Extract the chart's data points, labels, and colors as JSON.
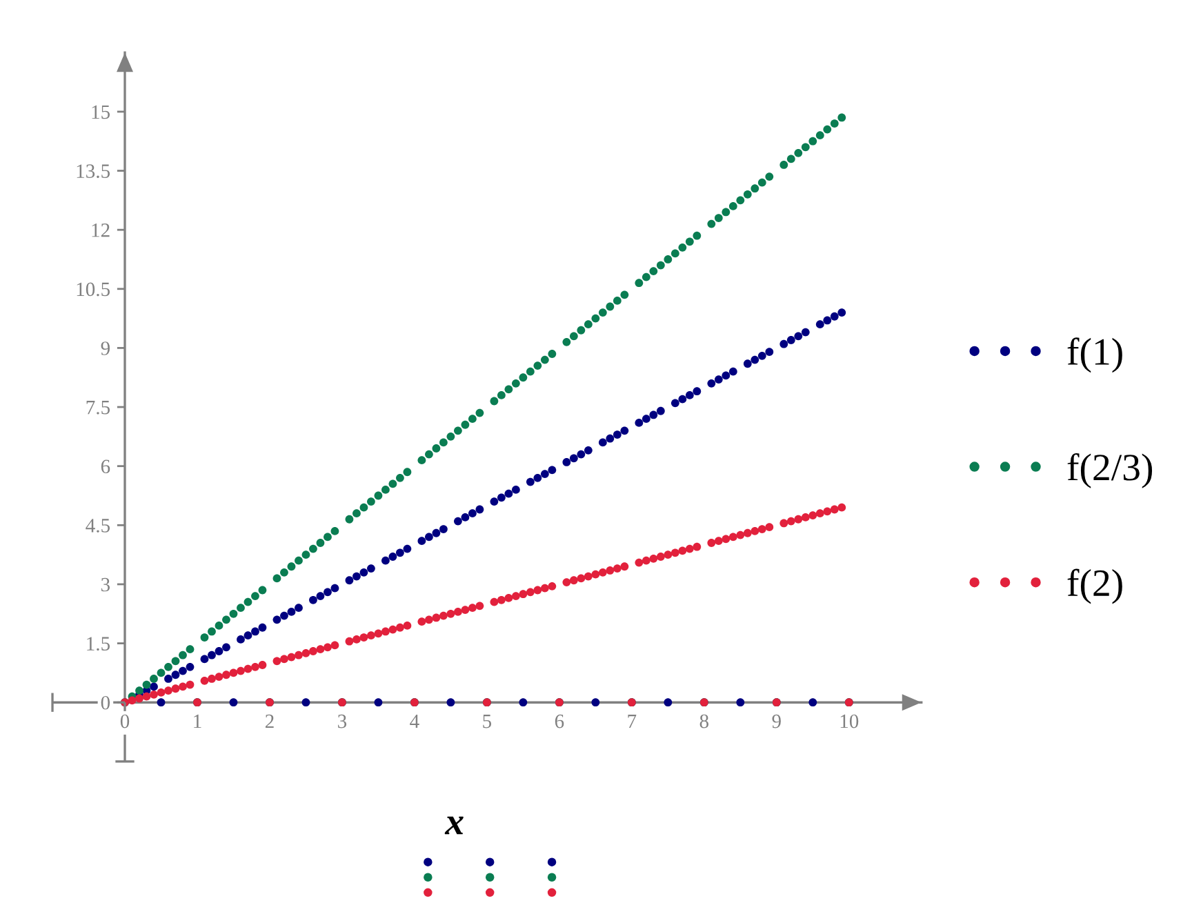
{
  "chart_data": {
    "type": "scatter",
    "xlabel": "x",
    "marker": "circle",
    "legend": "right",
    "xlim": [
      -1,
      11
    ],
    "ylim": [
      -1.5,
      16.5
    ],
    "xticks": [
      0,
      1,
      2,
      3,
      4,
      5,
      6,
      7,
      8,
      9,
      10
    ],
    "yticks": [
      0,
      1.5,
      3,
      4.5,
      6,
      7.5,
      9,
      10.5,
      12,
      13.5,
      15
    ],
    "x": [
      0,
      0.1,
      0.2,
      0.3,
      0.4,
      0.5,
      0.6,
      0.7,
      0.8,
      0.9,
      1,
      1.1,
      1.2,
      1.3,
      1.4,
      1.5,
      1.6,
      1.7,
      1.8,
      1.9,
      2,
      2.1,
      2.2,
      2.3,
      2.4,
      2.5,
      2.6,
      2.7,
      2.8,
      2.9,
      3,
      3.1,
      3.2,
      3.3,
      3.4,
      3.5,
      3.6,
      3.7,
      3.8,
      3.9,
      4,
      4.1,
      4.2,
      4.3,
      4.4,
      4.5,
      4.6,
      4.7,
      4.8,
      4.9,
      5,
      5.1,
      5.2,
      5.3,
      5.4,
      5.5,
      5.6,
      5.7,
      5.8,
      5.9,
      6,
      6.1,
      6.2,
      6.3,
      6.4,
      6.5,
      6.6,
      6.7,
      6.8,
      6.9,
      7,
      7.1,
      7.2,
      7.3,
      7.4,
      7.5,
      7.6,
      7.7,
      7.8,
      7.9,
      8,
      8.1,
      8.2,
      8.3,
      8.4,
      8.5,
      8.6,
      8.7,
      8.8,
      8.9,
      9,
      9.1,
      9.2,
      9.3,
      9.4,
      9.5,
      9.6,
      9.7,
      9.8,
      9.9,
      10
    ],
    "series": [
      {
        "name": "f(1)",
        "color": "#000080",
        "values": [
          0,
          null,
          0.2,
          0.3,
          0.4,
          0,
          0.6,
          0.7,
          0.8,
          0.9,
          0,
          1.1,
          1.2,
          1.3,
          1.4,
          0,
          1.6,
          1.7,
          1.8,
          1.9,
          0,
          2.1,
          2.2,
          2.3,
          2.4,
          0,
          2.6,
          2.7,
          2.8,
          2.9,
          0,
          3.1,
          3.2,
          3.3,
          3.4,
          0,
          3.6,
          3.7,
          3.8,
          3.9,
          0,
          4.1,
          4.2,
          4.3,
          4.4,
          0,
          4.6,
          4.7,
          4.8,
          4.9,
          0,
          5.1,
          5.2,
          5.3,
          5.4,
          0,
          5.6,
          5.7,
          5.8,
          5.9,
          0,
          6.1,
          6.2,
          6.3,
          6.4,
          0,
          6.6,
          6.7,
          6.8,
          6.9,
          0,
          7.1,
          7.2,
          7.3,
          7.4,
          0,
          7.6,
          7.7,
          7.8,
          7.9,
          0,
          8.1,
          8.2,
          8.3,
          8.4,
          0,
          8.6,
          8.7,
          8.8,
          8.9,
          0,
          9.1,
          9.2,
          9.3,
          9.4,
          0,
          9.6,
          9.7,
          9.8,
          9.9,
          0
        ]
      },
      {
        "name": "f(2/3)",
        "color": "#0a7d52",
        "values": [
          0,
          0.15,
          0.3,
          0.45,
          0.6,
          0.75,
          0.9,
          1.05,
          1.2,
          1.35,
          0,
          1.65,
          1.8,
          1.95,
          2.1,
          2.25,
          2.4,
          2.55,
          2.7,
          2.85,
          0,
          3.15,
          3.3,
          3.45,
          3.6,
          3.75,
          3.9,
          4.05,
          4.2,
          4.35,
          0,
          4.65,
          4.8,
          4.95,
          5.1,
          5.25,
          5.4,
          5.55,
          5.7,
          5.85,
          0,
          6.15,
          6.3,
          6.45,
          6.6,
          6.75,
          6.9,
          7.05,
          7.2,
          7.35,
          0,
          7.65,
          7.8,
          7.95,
          8.1,
          8.25,
          8.4,
          8.55,
          8.7,
          8.85,
          0,
          9.15,
          9.3,
          9.45,
          9.6,
          9.75,
          9.9,
          10.05,
          10.2,
          10.35,
          0,
          10.65,
          10.8,
          10.95,
          11.1,
          11.25,
          11.4,
          11.55,
          11.7,
          11.85,
          0,
          12.15,
          12.3,
          12.45,
          12.6,
          12.75,
          12.9,
          13.05,
          13.2,
          13.35,
          0,
          13.65,
          13.8,
          13.95,
          14.1,
          14.25,
          14.4,
          14.55,
          14.7,
          14.85,
          0
        ]
      },
      {
        "name": "f(2)",
        "color": "#e2213c",
        "values": [
          0,
          0.05,
          0.1,
          0.15,
          0.2,
          0.25,
          0.3,
          0.35,
          0.4,
          0.45,
          0,
          0.55,
          0.6,
          0.65,
          0.7,
          0.75,
          0.8,
          0.85,
          0.9,
          0.95,
          0,
          1.05,
          1.1,
          1.15,
          1.2,
          1.25,
          1.3,
          1.35,
          1.4,
          1.45,
          0,
          1.55,
          1.6,
          1.65,
          1.7,
          1.75,
          1.8,
          1.85,
          1.9,
          1.95,
          0,
          2.05,
          2.1,
          2.15,
          2.2,
          2.25,
          2.3,
          2.35,
          2.4,
          2.45,
          0,
          2.55,
          2.6,
          2.65,
          2.7,
          2.75,
          2.8,
          2.85,
          2.9,
          2.95,
          0,
          3.05,
          3.1,
          3.15,
          3.2,
          3.25,
          3.3,
          3.35,
          3.4,
          3.45,
          0,
          3.55,
          3.6,
          3.65,
          3.7,
          3.75,
          3.8,
          3.85,
          3.9,
          3.95,
          0,
          4.05,
          4.1,
          4.15,
          4.2,
          4.25,
          4.3,
          4.35,
          4.4,
          4.45,
          0,
          4.55,
          4.6,
          4.65,
          4.7,
          4.75,
          4.8,
          4.85,
          4.9,
          4.95,
          0
        ]
      }
    ]
  }
}
